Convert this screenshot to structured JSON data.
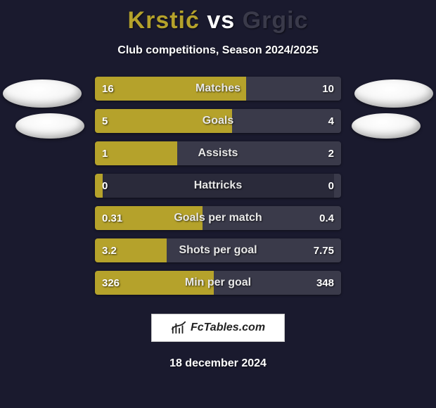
{
  "title": {
    "player1": "Krstić",
    "vs": "vs",
    "player2": "Grgic",
    "player1_color": "#b5a22b",
    "player2_color": "#3a3a4a"
  },
  "subtitle": "Club competitions, Season 2024/2025",
  "colors": {
    "background": "#1a1a2e",
    "bar_track": "#2a2a3a",
    "left_fill": "#b5a22b",
    "right_fill": "#3a3a4a",
    "text": "#ffffff",
    "label_text": "#e8e8e8"
  },
  "typography": {
    "title_fontsize": 34,
    "subtitle_fontsize": 16,
    "bar_label_fontsize": 16,
    "bar_value_fontsize": 15,
    "font_weight_bold": 800
  },
  "bar_style": {
    "height": 34,
    "gap": 12,
    "border_radius": 4
  },
  "stats": [
    {
      "label": "Matches",
      "left_text": "16",
      "right_text": "10",
      "left_pct": 61.5,
      "right_pct": 38.5
    },
    {
      "label": "Goals",
      "left_text": "5",
      "right_text": "4",
      "left_pct": 55.6,
      "right_pct": 44.4
    },
    {
      "label": "Assists",
      "left_text": "1",
      "right_text": "2",
      "left_pct": 33.3,
      "right_pct": 66.7
    },
    {
      "label": "Hattricks",
      "left_text": "0",
      "right_text": "0",
      "left_pct": 3.0,
      "right_pct": 3.0
    },
    {
      "label": "Goals per match",
      "left_text": "0.31",
      "right_text": "0.4",
      "left_pct": 43.7,
      "right_pct": 56.3
    },
    {
      "label": "Shots per goal",
      "left_text": "3.2",
      "right_text": "7.75",
      "left_pct": 29.2,
      "right_pct": 70.8
    },
    {
      "label": "Min per goal",
      "left_text": "326",
      "right_text": "348",
      "left_pct": 48.4,
      "right_pct": 51.6
    }
  ],
  "footer": {
    "brand": "FcTables.com",
    "date": "18 december 2024"
  }
}
